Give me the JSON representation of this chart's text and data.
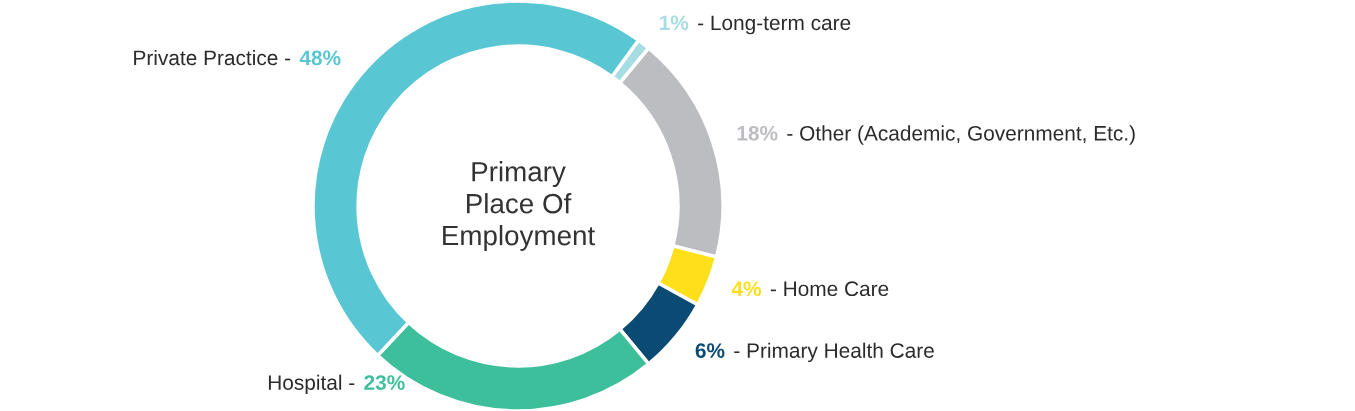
{
  "chart_data": {
    "type": "donut",
    "title": "Primary\nPlace Of\nEmployment",
    "categories": [
      "- Long-term care",
      "- Other (Academic, Government, Etc.)",
      "- Home Care",
      "- Primary Health Care",
      "Hospital -",
      "Private Practice -"
    ],
    "values": [
      1,
      18,
      4,
      6,
      23,
      48
    ],
    "value_labels": [
      "1%",
      "18%",
      "4%",
      "6%",
      "23%",
      "48%"
    ],
    "colors": [
      "#a6dde3",
      "#bcbdc1",
      "#fddf1a",
      "#0b4a72",
      "#3dbf9c",
      "#58c7d3"
    ],
    "legend": false
  }
}
